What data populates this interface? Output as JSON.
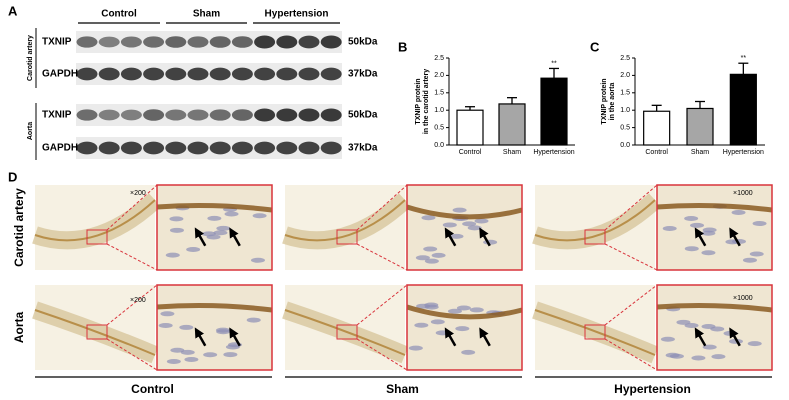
{
  "panel_labels": [
    "A",
    "B",
    "C",
    "D"
  ],
  "blot": {
    "groups": [
      "Control",
      "Sham",
      "Hypertension"
    ],
    "tissues": [
      "Carotid artery",
      "Aorta"
    ],
    "proteins": [
      "TXNIP",
      "GAPDH",
      "TXNIP",
      "GAPDH"
    ],
    "sizes": [
      "50kDa",
      "37kDa",
      "50kDa",
      "37kDa"
    ]
  },
  "chart_data": [
    {
      "type": "bar",
      "ylabel": [
        "TXNIP protein",
        "in the carotid artery"
      ],
      "categories": [
        "Control",
        "Sham",
        "Hypertension"
      ],
      "values": [
        1.0,
        1.18,
        1.92
      ],
      "errors": [
        0.1,
        0.18,
        0.28
      ],
      "colors": [
        "#ffffff",
        "#a6a6a6",
        "#000000"
      ],
      "annotation": "**",
      "ylim": [
        0,
        2.5
      ],
      "yticks": [
        {
          "value": 0,
          "label": "0.0"
        },
        {
          "value": 0.5,
          "label": "0.5"
        },
        {
          "value": 1,
          "label": "1.0"
        },
        {
          "value": 1.5,
          "label": "1.5"
        },
        {
          "value": 2,
          "label": "2.0"
        },
        {
          "value": 2.5,
          "label": "2.5"
        }
      ]
    },
    {
      "type": "bar",
      "ylabel": [
        "TXNIP protein",
        "in the aorta"
      ],
      "categories": [
        "Control",
        "Sham",
        "Hypertension"
      ],
      "values": [
        0.97,
        1.05,
        2.03
      ],
      "errors": [
        0.17,
        0.2,
        0.32
      ],
      "colors": [
        "#ffffff",
        "#a6a6a6",
        "#000000"
      ],
      "annotation": "**",
      "ylim": [
        0,
        2.5
      ],
      "yticks": [
        {
          "value": 0,
          "label": "0.0"
        },
        {
          "value": 0.5,
          "label": "0.5"
        },
        {
          "value": 1,
          "label": "1.0"
        },
        {
          "value": 1.5,
          "label": "1.5"
        },
        {
          "value": 2,
          "label": "2.0"
        },
        {
          "value": 2.5,
          "label": "2.5"
        }
      ]
    }
  ],
  "histology": {
    "rows": [
      "Carotid artery",
      "Aorta"
    ],
    "columns": [
      "Control",
      "Sham",
      "Hypertension"
    ],
    "magnifications": [
      "×200",
      "×200",
      "×1000",
      "×1000"
    ]
  }
}
